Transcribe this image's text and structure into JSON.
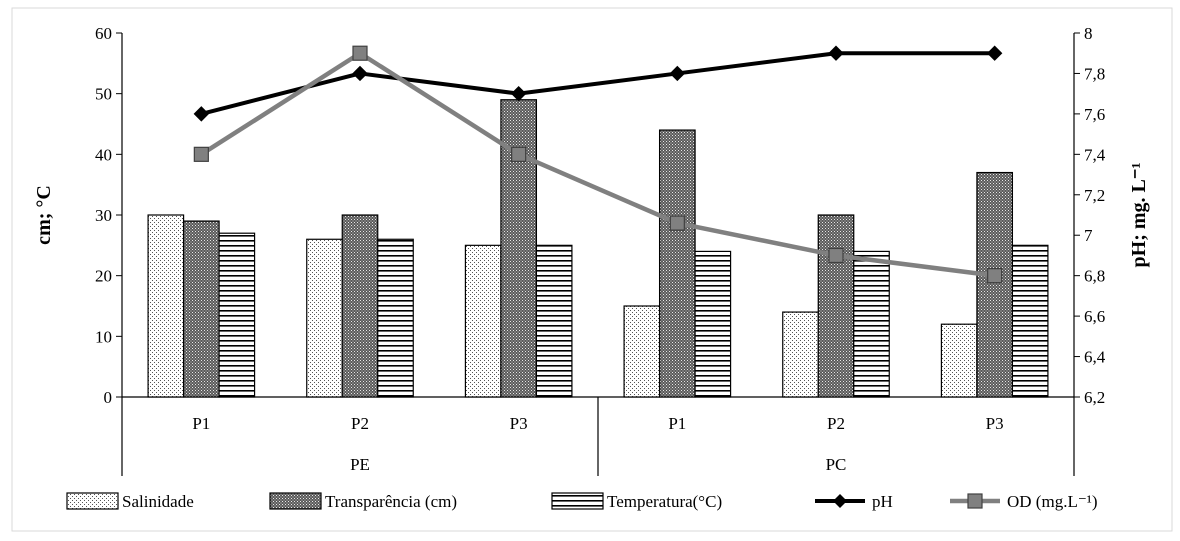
{
  "chart_data": {
    "type": "bar",
    "groups": [
      {
        "label": "PE",
        "categories": [
          "P1",
          "P2",
          "P3"
        ]
      },
      {
        "label": "PC",
        "categories": [
          "P1",
          "P2",
          "P3"
        ]
      }
    ],
    "bar_series": [
      {
        "name": "Salinidade",
        "pattern": "dots",
        "values": [
          30,
          26,
          25,
          15,
          14,
          12
        ]
      },
      {
        "name": "Transparência (cm)",
        "pattern": "crosshatch",
        "values": [
          29,
          30,
          49,
          44,
          30,
          37
        ]
      },
      {
        "name": "Temperatura(°C)",
        "pattern": "horizontal-lines",
        "values": [
          27,
          26,
          25,
          24,
          24,
          25
        ]
      }
    ],
    "line_series": [
      {
        "name": "pH",
        "color": "#000000",
        "marker": "diamond",
        "values": [
          7.6,
          7.8,
          7.7,
          7.8,
          7.9,
          7.9
        ]
      },
      {
        "name": "OD (mg.L⁻¹)",
        "color": "#808080",
        "marker": "square",
        "values": [
          7.4,
          7.9,
          7.4,
          7.06,
          6.9,
          6.8
        ]
      }
    ],
    "y_left": {
      "label": "cm; °C",
      "min": 0,
      "max": 60,
      "ticks": [
        {
          "value": 0,
          "label": "0"
        },
        {
          "value": 10,
          "label": "10"
        },
        {
          "value": 20,
          "label": "20"
        },
        {
          "value": 30,
          "label": "30"
        },
        {
          "value": 40,
          "label": "40"
        },
        {
          "value": 50,
          "label": "50"
        },
        {
          "value": 60,
          "label": "60"
        }
      ]
    },
    "y_right": {
      "label": "pH; mg. L⁻¹",
      "min": 6.2,
      "max": 8,
      "ticks": [
        {
          "value": 6.2,
          "label": "6,2"
        },
        {
          "value": 6.4,
          "label": "6,4"
        },
        {
          "value": 6.6,
          "label": "6,6"
        },
        {
          "value": 6.8,
          "label": "6,8"
        },
        {
          "value": 7,
          "label": "7"
        },
        {
          "value": 7.2,
          "label": "7,2"
        },
        {
          "value": 7.4,
          "label": "7,4"
        },
        {
          "value": 7.6,
          "label": "7,6"
        },
        {
          "value": 7.8,
          "label": "7,8"
        },
        {
          "value": 8,
          "label": "8"
        }
      ]
    },
    "grid": false,
    "legend_position": "bottom"
  }
}
